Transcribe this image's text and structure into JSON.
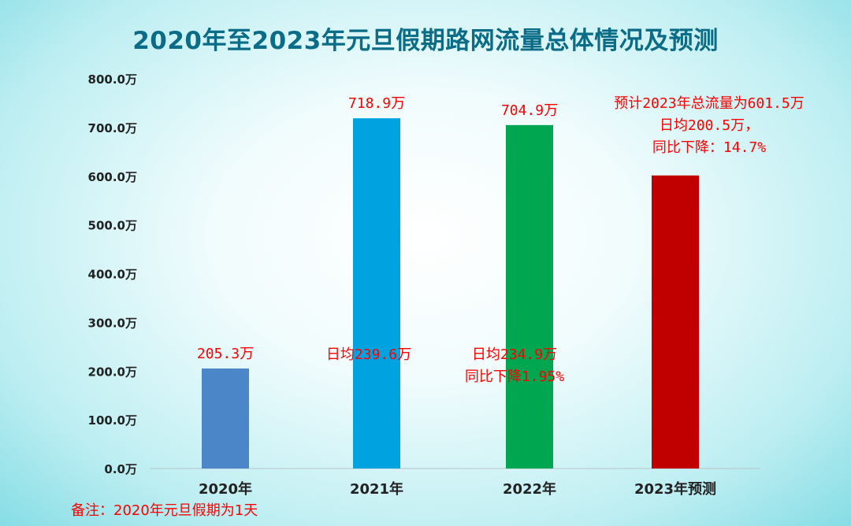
{
  "chart_data": {
    "type": "bar",
    "title": "2020年至2023年元旦假期路网流量总体情况及预测",
    "categories": [
      "2020年",
      "2021年",
      "2022年",
      "2023年预测"
    ],
    "values": [
      205.3,
      718.9,
      704.9,
      601.5
    ],
    "value_labels": [
      "205.3万",
      "718.9万",
      "704.9万",
      ""
    ],
    "annotations": [
      [],
      [
        "日均239.6万"
      ],
      [
        "日均234.9万",
        "同比下降1.95%"
      ],
      [
        "预计2023年总流量为601.5万",
        "日均200.5万，",
        "同比下降：14.7%"
      ]
    ],
    "bar_colors": [
      "#4a86c8",
      "#00a2e0",
      "#00a650",
      "#c00000"
    ],
    "ylim": [
      0,
      800
    ],
    "yticks": [
      "0.0万",
      "100.0万",
      "200.0万",
      "300.0万",
      "400.0万",
      "500.0万",
      "600.0万",
      "700.0万",
      "800.0万"
    ],
    "xlabel": "",
    "ylabel": "",
    "grid": false,
    "legend": "none"
  },
  "footnote": "备注：2020年元旦假期为1天"
}
